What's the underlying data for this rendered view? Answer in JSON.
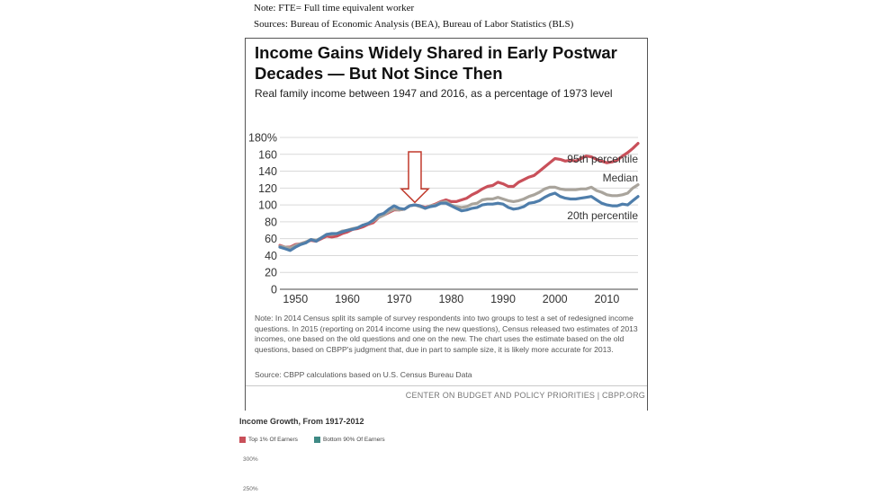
{
  "header_notes": {
    "note": "Note: FTE= Full time equivalent worker",
    "sources": "Sources: Bureau of Economic Analysis (BEA), Bureau of Labor Statistics (BLS)"
  },
  "card": {
    "title": "Income Gains Widely Shared in Early Postwar Decades — But Not Since Then",
    "subtitle": "Real family income between 1947 and 2016, as a percentage of 1973 level",
    "note": "Note: In 2014 Census split its sample of survey respondents into two groups to test a set of redesigned income questions.  In 2015 (reporting on 2014 income using the new questions), Census released two estimates of 2013 incomes, one based on the old questions and one on the new.  The chart uses the estimate based on the old questions, based on CBPP's judgment that, due in part to sample size, it is likely more accurate for 2013.",
    "source": "Source: CBPP calculations based on U.S. Census Bureau Data",
    "footer": "CENTER ON BUDGET AND POLICY PRIORITIES | CBPP.ORG"
  },
  "chart_data": [
    {
      "type": "line",
      "title": "Income Gains Widely Shared in Early Postwar Decades — But Not Since Then",
      "subtitle": "Real family income between 1947 and 2016, as a percentage of 1973 level",
      "xlabel": "",
      "ylabel": "",
      "xlim": [
        1947,
        2016
      ],
      "ylim": [
        0,
        180
      ],
      "xticks": [
        1950,
        1960,
        1970,
        1980,
        1990,
        2000,
        2010
      ],
      "xtick_labels": [
        "1950",
        "1960",
        "1970",
        "1980",
        "1990",
        "2000",
        "2010"
      ],
      "yticks": [
        0,
        20,
        40,
        60,
        80,
        100,
        120,
        140,
        160,
        180
      ],
      "ytick_labels": [
        "0",
        "20",
        "40",
        "60",
        "80",
        "100",
        "120",
        "140",
        "160",
        "180%"
      ],
      "grid": "horizontal",
      "annotation": {
        "type": "arrow-down",
        "year": 1973,
        "value": 100
      },
      "series": [
        {
          "name": "95th percentile",
          "color": "#c9505a",
          "points": [
            [
              1947,
              52
            ],
            [
              1948,
              50
            ],
            [
              1949,
              50
            ],
            [
              1950,
              53
            ],
            [
              1951,
              54
            ],
            [
              1952,
              56
            ],
            [
              1953,
              58
            ],
            [
              1954,
              57
            ],
            [
              1955,
              60
            ],
            [
              1956,
              63
            ],
            [
              1957,
              62
            ],
            [
              1958,
              63
            ],
            [
              1959,
              66
            ],
            [
              1960,
              68
            ],
            [
              1961,
              71
            ],
            [
              1962,
              72
            ],
            [
              1963,
              74
            ],
            [
              1964,
              77
            ],
            [
              1965,
              79
            ],
            [
              1966,
              85
            ],
            [
              1967,
              88
            ],
            [
              1968,
              91
            ],
            [
              1969,
              94
            ],
            [
              1970,
              94
            ],
            [
              1971,
              95
            ],
            [
              1972,
              99
            ],
            [
              1973,
              100
            ],
            [
              1974,
              99
            ],
            [
              1975,
              97
            ],
            [
              1976,
              99
            ],
            [
              1977,
              101
            ],
            [
              1978,
              104
            ],
            [
              1979,
              106
            ],
            [
              1980,
              104
            ],
            [
              1981,
              104
            ],
            [
              1982,
              106
            ],
            [
              1983,
              108
            ],
            [
              1984,
              112
            ],
            [
              1985,
              115
            ],
            [
              1986,
              119
            ],
            [
              1987,
              122
            ],
            [
              1988,
              123
            ],
            [
              1989,
              127
            ],
            [
              1990,
              125
            ],
            [
              1991,
              122
            ],
            [
              1992,
              122
            ],
            [
              1993,
              127
            ],
            [
              1994,
              130
            ],
            [
              1995,
              133
            ],
            [
              1996,
              135
            ],
            [
              1997,
              140
            ],
            [
              1998,
              145
            ],
            [
              1999,
              150
            ],
            [
              2000,
              155
            ],
            [
              2001,
              154
            ],
            [
              2002,
              152
            ],
            [
              2003,
              153
            ],
            [
              2004,
              152
            ],
            [
              2005,
              155
            ],
            [
              2006,
              158
            ],
            [
              2007,
              157
            ],
            [
              2008,
              154
            ],
            [
              2009,
              152
            ],
            [
              2010,
              150
            ],
            [
              2011,
              151
            ],
            [
              2012,
              153
            ],
            [
              2013,
              158
            ],
            [
              2014,
              162
            ],
            [
              2015,
              167
            ],
            [
              2016,
              173
            ]
          ]
        },
        {
          "name": "Median",
          "color": "#a9a49c",
          "points": [
            [
              1947,
              51
            ],
            [
              1948,
              50
            ],
            [
              1949,
              49
            ],
            [
              1950,
              52
            ],
            [
              1951,
              54
            ],
            [
              1952,
              56
            ],
            [
              1953,
              59
            ],
            [
              1954,
              58
            ],
            [
              1955,
              61
            ],
            [
              1956,
              65
            ],
            [
              1957,
              65
            ],
            [
              1958,
              66
            ],
            [
              1959,
              69
            ],
            [
              1960,
              70
            ],
            [
              1961,
              72
            ],
            [
              1962,
              73
            ],
            [
              1963,
              76
            ],
            [
              1964,
              78
            ],
            [
              1965,
              81
            ],
            [
              1966,
              85
            ],
            [
              1967,
              88
            ],
            [
              1968,
              92
            ],
            [
              1969,
              95
            ],
            [
              1970,
              94
            ],
            [
              1971,
              95
            ],
            [
              1972,
              99
            ],
            [
              1973,
              100
            ],
            [
              1974,
              98
            ],
            [
              1975,
              96
            ],
            [
              1976,
              99
            ],
            [
              1977,
              100
            ],
            [
              1978,
              103
            ],
            [
              1979,
              104
            ],
            [
              1980,
              100
            ],
            [
              1981,
              98
            ],
            [
              1982,
              97
            ],
            [
              1983,
              98
            ],
            [
              1984,
              101
            ],
            [
              1985,
              102
            ],
            [
              1986,
              106
            ],
            [
              1987,
              107
            ],
            [
              1988,
              107
            ],
            [
              1989,
              109
            ],
            [
              1990,
              107
            ],
            [
              1991,
              105
            ],
            [
              1992,
              104
            ],
            [
              1993,
              105
            ],
            [
              1994,
              107
            ],
            [
              1995,
              110
            ],
            [
              1996,
              112
            ],
            [
              1997,
              115
            ],
            [
              1998,
              119
            ],
            [
              1999,
              121
            ],
            [
              2000,
              121
            ],
            [
              2001,
              119
            ],
            [
              2002,
              118
            ],
            [
              2003,
              118
            ],
            [
              2004,
              118
            ],
            [
              2005,
              119
            ],
            [
              2006,
              119
            ],
            [
              2007,
              121
            ],
            [
              2008,
              117
            ],
            [
              2009,
              115
            ],
            [
              2010,
              112
            ],
            [
              2011,
              111
            ],
            [
              2012,
              111
            ],
            [
              2013,
              112
            ],
            [
              2014,
              114
            ],
            [
              2015,
              120
            ],
            [
              2016,
              124
            ]
          ]
        },
        {
          "name": "20th percentile",
          "color": "#4f7eab",
          "points": [
            [
              1947,
              50
            ],
            [
              1948,
              48
            ],
            [
              1949,
              46
            ],
            [
              1950,
              50
            ],
            [
              1951,
              53
            ],
            [
              1952,
              55
            ],
            [
              1953,
              59
            ],
            [
              1954,
              57
            ],
            [
              1955,
              61
            ],
            [
              1956,
              65
            ],
            [
              1957,
              66
            ],
            [
              1958,
              66
            ],
            [
              1959,
              68
            ],
            [
              1960,
              70
            ],
            [
              1961,
              71
            ],
            [
              1962,
              73
            ],
            [
              1963,
              76
            ],
            [
              1964,
              78
            ],
            [
              1965,
              82
            ],
            [
              1966,
              88
            ],
            [
              1967,
              90
            ],
            [
              1968,
              95
            ],
            [
              1969,
              99
            ],
            [
              1970,
              96
            ],
            [
              1971,
              95
            ],
            [
              1972,
              99
            ],
            [
              1973,
              100
            ],
            [
              1974,
              99
            ],
            [
              1975,
              96
            ],
            [
              1976,
              98
            ],
            [
              1977,
              99
            ],
            [
              1978,
              102
            ],
            [
              1979,
              102
            ],
            [
              1980,
              99
            ],
            [
              1981,
              96
            ],
            [
              1982,
              93
            ],
            [
              1983,
              94
            ],
            [
              1984,
              96
            ],
            [
              1985,
              97
            ],
            [
              1986,
              100
            ],
            [
              1987,
              101
            ],
            [
              1988,
              101
            ],
            [
              1989,
              102
            ],
            [
              1990,
              101
            ],
            [
              1991,
              97
            ],
            [
              1992,
              95
            ],
            [
              1993,
              96
            ],
            [
              1994,
              98
            ],
            [
              1995,
              102
            ],
            [
              1996,
              103
            ],
            [
              1997,
              105
            ],
            [
              1998,
              109
            ],
            [
              1999,
              112
            ],
            [
              2000,
              114
            ],
            [
              2001,
              110
            ],
            [
              2002,
              108
            ],
            [
              2003,
              107
            ],
            [
              2004,
              107
            ],
            [
              2005,
              108
            ],
            [
              2006,
              109
            ],
            [
              2007,
              110
            ],
            [
              2008,
              106
            ],
            [
              2009,
              102
            ],
            [
              2010,
              100
            ],
            [
              2011,
              99
            ],
            [
              2012,
              99
            ],
            [
              2013,
              101
            ],
            [
              2014,
              100
            ],
            [
              2015,
              105
            ],
            [
              2016,
              110
            ]
          ]
        }
      ]
    },
    {
      "type": "line",
      "title": "Income Growth, From 1917-2012",
      "legend": [
        {
          "name": "Top 1% Of Earners",
          "color": "#c9505a"
        },
        {
          "name": "Bottom 90% Of Earners",
          "color": "#3f8a85"
        }
      ],
      "ytick_labels": [
        "300%",
        "250%"
      ]
    }
  ]
}
